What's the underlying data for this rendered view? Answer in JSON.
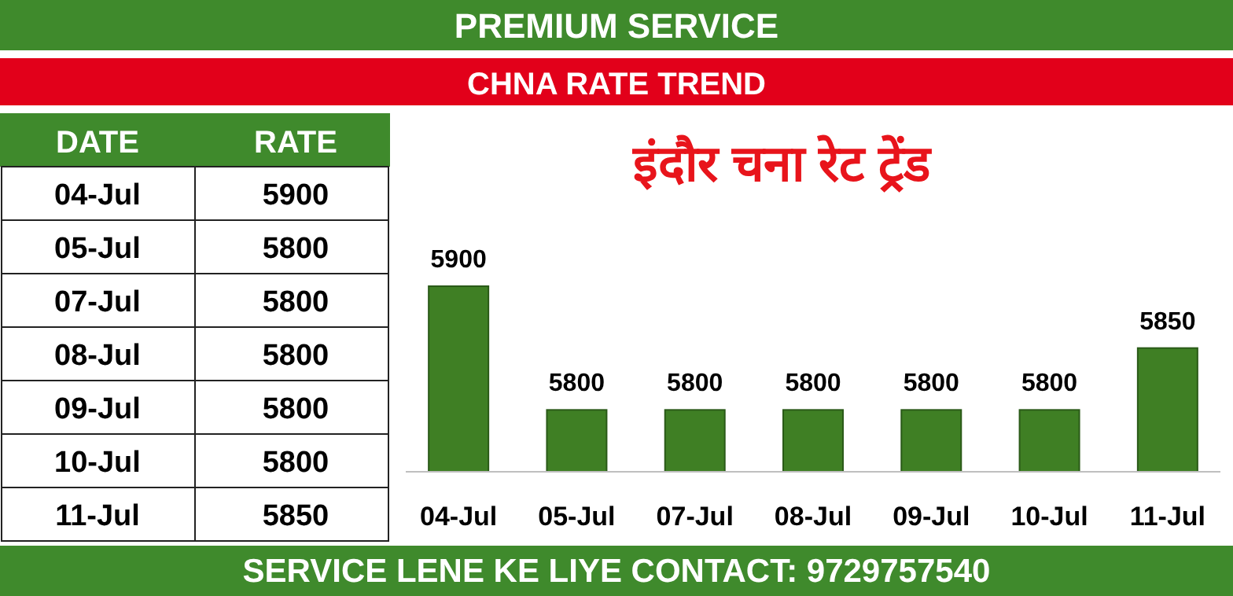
{
  "chart_data": [
    {
      "type": "other",
      "annotations": [
        "DATE",
        "RATE",
        "04-Jul",
        "5900",
        "05-Jul",
        "5800",
        "07-Jul",
        "5800",
        "08-Jul",
        "5800",
        "09-Jul",
        "5800",
        "10-Jul",
        "5800",
        "11-Jul",
        "5850"
      ]
    },
    {
      "type": "bar",
      "title": "इंदौर चना रेट ट्रेंड",
      "subtitle": "CHNA RATE TREND",
      "categories": [
        "04-Jul",
        "05-Jul",
        "07-Jul",
        "08-Jul",
        "09-Jul",
        "10-Jul",
        "11-Jul"
      ],
      "values": [
        5900,
        5800,
        5800,
        5800,
        5800,
        5800,
        5850
      ],
      "color": "#3f7f24",
      "ylim": [
        5750,
        5900
      ],
      "tick_labels": "x",
      "data_labels": true,
      "annotations": [
        "PREMIUM SERVICE",
        "SERVICE LENE KE LIYE CONTACT: 9729757540"
      ]
    }
  ]
}
